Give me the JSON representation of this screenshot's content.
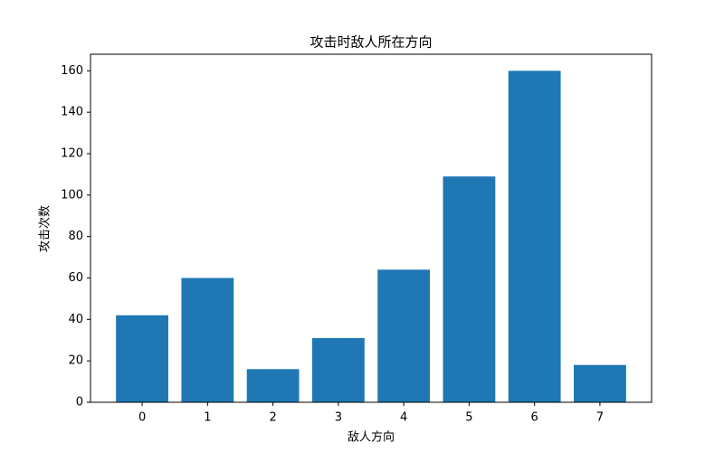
{
  "chart_data": {
    "type": "bar",
    "title": "攻击时敌人所在方向",
    "x_label": "敌人方向",
    "y_label": "攻击次数",
    "categories": [
      "0",
      "1",
      "2",
      "3",
      "4",
      "5",
      "6",
      "7"
    ],
    "values": [
      42,
      60,
      16,
      31,
      64,
      109,
      160,
      18
    ],
    "color": "#1f77b4",
    "ylim": [
      0,
      168
    ],
    "yticks": [
      0,
      20,
      40,
      60,
      80,
      100,
      120,
      140,
      160
    ],
    "grid": false
  }
}
